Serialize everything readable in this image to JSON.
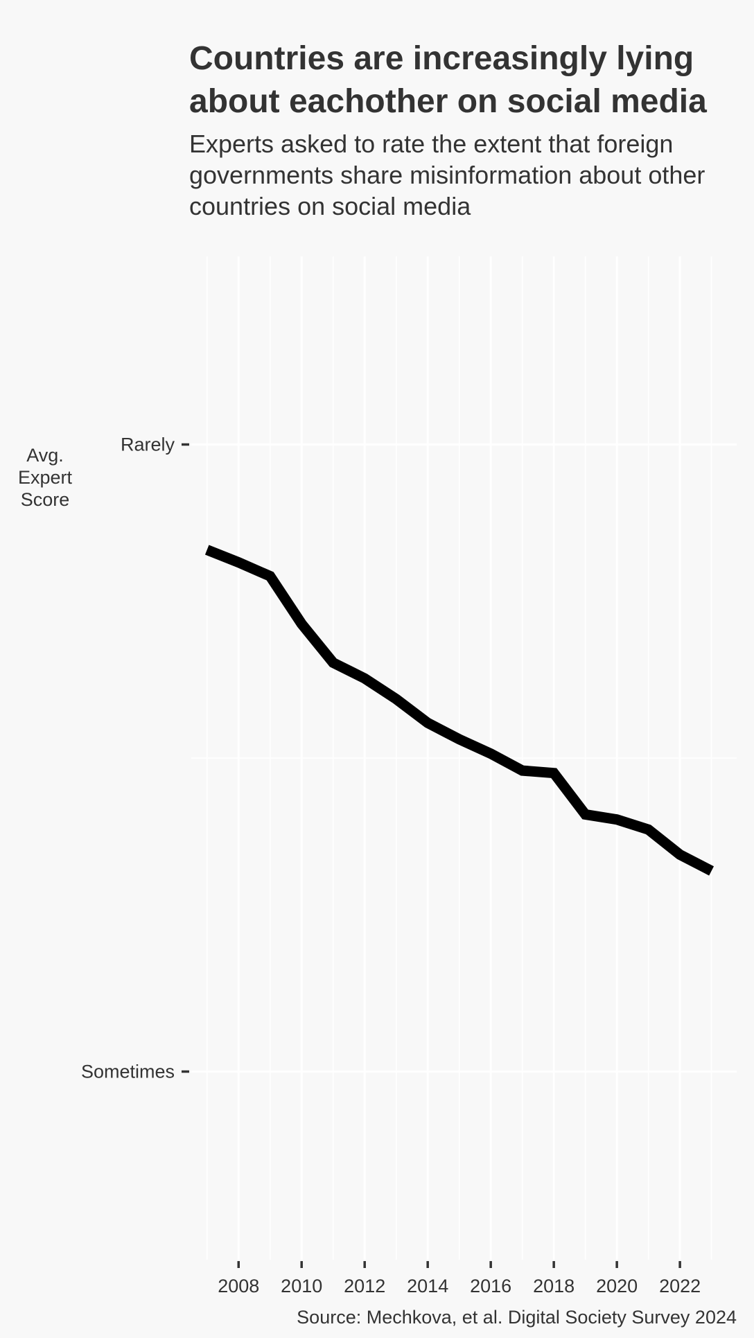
{
  "chart_data": {
    "type": "line",
    "title_lines": [
      "Countries are increasingly lying",
      "about eachother on social media"
    ],
    "subtitle_lines": [
      "Experts asked to rate the extent that foreign",
      "governments share misinformation about other",
      "countries on social media"
    ],
    "ylabel_lines": [
      "Avg.",
      "Expert",
      "Score"
    ],
    "caption": "Source: Mechkova, et al. Digital Society Survey 2024",
    "y_ticks": [
      {
        "label": "Rarely",
        "value": 3
      },
      {
        "label": "Sometimes",
        "value": 2
      }
    ],
    "ylim": [
      3.3,
      1.7
    ],
    "xlim": [
      2006.5,
      2023.8
    ],
    "x_ticks": [
      2008,
      2010,
      2012,
      2014,
      2016,
      2018,
      2020,
      2022
    ],
    "grid": true,
    "series": [
      {
        "color": "#000000",
        "points": [
          [
            2007,
            2.832
          ],
          [
            2008,
            2.812
          ],
          [
            2009,
            2.79
          ],
          [
            2010,
            2.714
          ],
          [
            2011,
            2.652
          ],
          [
            2012,
            2.627
          ],
          [
            2013,
            2.594
          ],
          [
            2014,
            2.556
          ],
          [
            2015,
            2.53
          ],
          [
            2016,
            2.507
          ],
          [
            2017,
            2.48
          ],
          [
            2018,
            2.476
          ],
          [
            2019,
            2.41
          ],
          [
            2020,
            2.402
          ],
          [
            2021,
            2.386
          ],
          [
            2022,
            2.346
          ],
          [
            2023,
            2.32
          ]
        ]
      }
    ]
  }
}
